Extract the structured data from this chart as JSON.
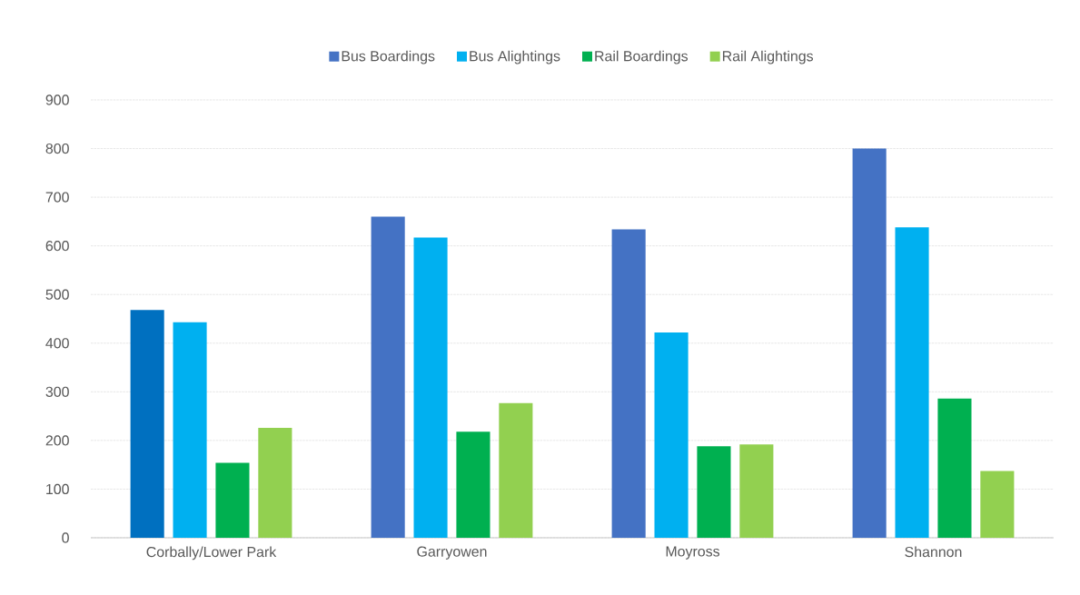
{
  "chart_data": {
    "type": "bar",
    "categories": [
      "Corbally/Lower Park",
      "Garryowen",
      "Moyross",
      "Shannon"
    ],
    "series": [
      {
        "name": "Bus Boardings",
        "color": "#4472c4",
        "colors": [
          "#0070c0",
          "#4472c4",
          "#4472c4",
          "#4472c4"
        ],
        "values": [
          468,
          660,
          634,
          800
        ]
      },
      {
        "name": "Bus Alightings",
        "color": "#00b0f0",
        "values": [
          443,
          617,
          422,
          638
        ]
      },
      {
        "name": "Rail Boardings",
        "color": "#00b050",
        "values": [
          154,
          218,
          188,
          286
        ]
      },
      {
        "name": "Rail Alightings",
        "color": "#92d050",
        "values": [
          226,
          277,
          192,
          137
        ]
      }
    ],
    "ylim": [
      0,
      900
    ],
    "yticks": [
      0,
      100,
      200,
      300,
      400,
      500,
      600,
      700,
      800,
      900
    ],
    "grid": "y",
    "legend": "top"
  }
}
